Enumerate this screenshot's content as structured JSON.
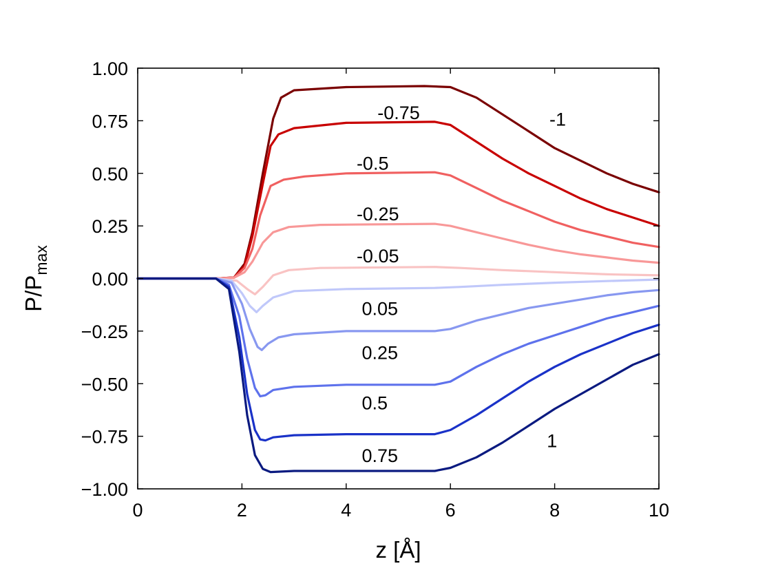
{
  "chart_data": {
    "type": "line",
    "title": "",
    "xlabel": "z [Å]",
    "ylabel": {
      "main": "P/P",
      "sub": "max"
    },
    "xlim": [
      0,
      10
    ],
    "ylim": [
      -1.0,
      1.0
    ],
    "xticks": [
      0,
      2,
      4,
      6,
      8,
      10
    ],
    "xtick_labels": [
      "0",
      "2",
      "4",
      "6",
      "8",
      "10"
    ],
    "yticks": [
      -1.0,
      -0.75,
      -0.5,
      -0.25,
      0.0,
      0.25,
      0.5,
      0.75,
      1.0
    ],
    "ytick_labels": [
      "−1.00",
      "−0.75",
      "−0.50",
      "−0.25",
      "0.00",
      "0.25",
      "0.50",
      "0.75",
      "1.00"
    ],
    "grid": false,
    "series": [
      {
        "label": "-1",
        "label_at": [
          7.9,
          0.76
        ],
        "color": "#7a0000",
        "points": [
          [
            0,
            0
          ],
          [
            1.5,
            0
          ],
          [
            1.85,
            0.005
          ],
          [
            2.05,
            0.07
          ],
          [
            2.2,
            0.22
          ],
          [
            2.4,
            0.5
          ],
          [
            2.6,
            0.76
          ],
          [
            2.75,
            0.86
          ],
          [
            3.0,
            0.895
          ],
          [
            4.0,
            0.91
          ],
          [
            5.5,
            0.915
          ],
          [
            6.0,
            0.91
          ],
          [
            6.5,
            0.86
          ],
          [
            7.0,
            0.78
          ],
          [
            7.5,
            0.7
          ],
          [
            8.0,
            0.62
          ],
          [
            8.5,
            0.56
          ],
          [
            9.0,
            0.5
          ],
          [
            9.5,
            0.45
          ],
          [
            10.0,
            0.41
          ]
        ]
      },
      {
        "label": "-0.75",
        "label_at": [
          4.6,
          0.79
        ],
        "color": "#c80000",
        "points": [
          [
            0,
            0
          ],
          [
            1.5,
            0
          ],
          [
            1.85,
            0.005
          ],
          [
            2.05,
            0.06
          ],
          [
            2.2,
            0.2
          ],
          [
            2.4,
            0.45
          ],
          [
            2.55,
            0.63
          ],
          [
            2.7,
            0.685
          ],
          [
            3.0,
            0.715
          ],
          [
            4.0,
            0.74
          ],
          [
            5.7,
            0.745
          ],
          [
            6.0,
            0.73
          ],
          [
            6.5,
            0.65
          ],
          [
            7.0,
            0.57
          ],
          [
            7.5,
            0.5
          ],
          [
            8.0,
            0.44
          ],
          [
            8.5,
            0.38
          ],
          [
            9.0,
            0.33
          ],
          [
            9.5,
            0.29
          ],
          [
            10.0,
            0.25
          ]
        ]
      },
      {
        "label": "-0.5",
        "label_at": [
          4.2,
          0.55
        ],
        "color": "#f06060",
        "points": [
          [
            0,
            0
          ],
          [
            1.5,
            0
          ],
          [
            1.85,
            0.004
          ],
          [
            2.05,
            0.05
          ],
          [
            2.2,
            0.14
          ],
          [
            2.35,
            0.3
          ],
          [
            2.55,
            0.44
          ],
          [
            2.8,
            0.47
          ],
          [
            3.2,
            0.485
          ],
          [
            4.0,
            0.5
          ],
          [
            5.7,
            0.505
          ],
          [
            6.0,
            0.49
          ],
          [
            6.5,
            0.43
          ],
          [
            7.0,
            0.37
          ],
          [
            7.5,
            0.32
          ],
          [
            8.0,
            0.27
          ],
          [
            8.5,
            0.23
          ],
          [
            9.0,
            0.2
          ],
          [
            9.5,
            0.17
          ],
          [
            10.0,
            0.15
          ]
        ]
      },
      {
        "label": "-0.25",
        "label_at": [
          4.2,
          0.31
        ],
        "color": "#f89898",
        "points": [
          [
            0,
            0
          ],
          [
            1.5,
            0
          ],
          [
            1.85,
            0.004
          ],
          [
            2.05,
            0.03
          ],
          [
            2.2,
            0.08
          ],
          [
            2.4,
            0.17
          ],
          [
            2.6,
            0.22
          ],
          [
            2.9,
            0.245
          ],
          [
            3.5,
            0.255
          ],
          [
            5.7,
            0.26
          ],
          [
            6.0,
            0.25
          ],
          [
            6.5,
            0.22
          ],
          [
            7.0,
            0.19
          ],
          [
            7.5,
            0.16
          ],
          [
            8.0,
            0.135
          ],
          [
            8.5,
            0.115
          ],
          [
            9.0,
            0.1
          ],
          [
            9.5,
            0.085
          ],
          [
            10.0,
            0.075
          ]
        ]
      },
      {
        "label": "-0.05",
        "label_at": [
          4.2,
          0.11
        ],
        "color": "#f9c3c3",
        "points": [
          [
            0,
            0
          ],
          [
            1.5,
            0
          ],
          [
            1.9,
            -0.01
          ],
          [
            2.1,
            -0.05
          ],
          [
            2.25,
            -0.075
          ],
          [
            2.4,
            -0.04
          ],
          [
            2.6,
            0.015
          ],
          [
            2.9,
            0.04
          ],
          [
            3.5,
            0.05
          ],
          [
            5.7,
            0.055
          ],
          [
            6.2,
            0.05
          ],
          [
            7.0,
            0.04
          ],
          [
            8.0,
            0.03
          ],
          [
            9.0,
            0.02
          ],
          [
            10.0,
            0.015
          ]
        ]
      },
      {
        "label": "0.05",
        "label_at": [
          4.3,
          -0.14
        ],
        "color": "#c0c8fa",
        "points": [
          [
            0,
            0
          ],
          [
            1.5,
            0
          ],
          [
            1.8,
            -0.01
          ],
          [
            2.0,
            -0.07
          ],
          [
            2.15,
            -0.13
          ],
          [
            2.28,
            -0.16
          ],
          [
            2.4,
            -0.13
          ],
          [
            2.6,
            -0.09
          ],
          [
            3.0,
            -0.06
          ],
          [
            4.0,
            -0.05
          ],
          [
            5.7,
            -0.045
          ],
          [
            6.2,
            -0.04
          ],
          [
            7.0,
            -0.03
          ],
          [
            8.0,
            -0.02
          ],
          [
            9.0,
            -0.012
          ],
          [
            10.0,
            -0.005
          ]
        ]
      },
      {
        "label": "0.25",
        "label_at": [
          4.3,
          -0.35
        ],
        "color": "#8898f0",
        "points": [
          [
            0,
            0
          ],
          [
            1.5,
            0
          ],
          [
            1.8,
            -0.02
          ],
          [
            2.0,
            -0.12
          ],
          [
            2.15,
            -0.24
          ],
          [
            2.3,
            -0.325
          ],
          [
            2.38,
            -0.34
          ],
          [
            2.5,
            -0.31
          ],
          [
            2.7,
            -0.28
          ],
          [
            3.0,
            -0.265
          ],
          [
            4.0,
            -0.25
          ],
          [
            5.7,
            -0.25
          ],
          [
            6.0,
            -0.24
          ],
          [
            6.5,
            -0.2
          ],
          [
            7.0,
            -0.17
          ],
          [
            7.5,
            -0.14
          ],
          [
            8.0,
            -0.12
          ],
          [
            8.5,
            -0.1
          ],
          [
            9.0,
            -0.08
          ],
          [
            9.5,
            -0.065
          ],
          [
            10.0,
            -0.055
          ]
        ]
      },
      {
        "label": "0.5",
        "label_at": [
          4.3,
          -0.59
        ],
        "color": "#5e72ec",
        "points": [
          [
            0,
            0
          ],
          [
            1.5,
            0
          ],
          [
            1.75,
            -0.03
          ],
          [
            1.95,
            -0.18
          ],
          [
            2.1,
            -0.38
          ],
          [
            2.25,
            -0.52
          ],
          [
            2.35,
            -0.56
          ],
          [
            2.45,
            -0.555
          ],
          [
            2.6,
            -0.53
          ],
          [
            3.0,
            -0.515
          ],
          [
            4.0,
            -0.505
          ],
          [
            5.7,
            -0.505
          ],
          [
            6.0,
            -0.49
          ],
          [
            6.5,
            -0.42
          ],
          [
            7.0,
            -0.36
          ],
          [
            7.5,
            -0.31
          ],
          [
            8.0,
            -0.27
          ],
          [
            8.5,
            -0.23
          ],
          [
            9.0,
            -0.19
          ],
          [
            9.5,
            -0.16
          ],
          [
            10.0,
            -0.13
          ]
        ]
      },
      {
        "label": "0.75",
        "label_at": [
          4.3,
          -0.84
        ],
        "color": "#1a32c8",
        "points": [
          [
            0,
            0
          ],
          [
            1.5,
            0
          ],
          [
            1.75,
            -0.04
          ],
          [
            1.95,
            -0.28
          ],
          [
            2.1,
            -0.55
          ],
          [
            2.25,
            -0.72
          ],
          [
            2.35,
            -0.765
          ],
          [
            2.45,
            -0.77
          ],
          [
            2.6,
            -0.755
          ],
          [
            3.0,
            -0.745
          ],
          [
            4.0,
            -0.74
          ],
          [
            5.7,
            -0.74
          ],
          [
            6.0,
            -0.72
          ],
          [
            6.5,
            -0.65
          ],
          [
            7.0,
            -0.57
          ],
          [
            7.5,
            -0.49
          ],
          [
            8.0,
            -0.42
          ],
          [
            8.5,
            -0.36
          ],
          [
            9.0,
            -0.31
          ],
          [
            9.5,
            -0.26
          ],
          [
            10.0,
            -0.22
          ]
        ]
      },
      {
        "label": "1",
        "label_at": [
          7.85,
          -0.77
        ],
        "color": "#0a1a80",
        "points": [
          [
            0,
            0
          ],
          [
            1.5,
            0
          ],
          [
            1.75,
            -0.05
          ],
          [
            1.95,
            -0.35
          ],
          [
            2.1,
            -0.65
          ],
          [
            2.25,
            -0.84
          ],
          [
            2.4,
            -0.905
          ],
          [
            2.55,
            -0.92
          ],
          [
            3.0,
            -0.915
          ],
          [
            4.0,
            -0.915
          ],
          [
            5.7,
            -0.915
          ],
          [
            6.0,
            -0.9
          ],
          [
            6.5,
            -0.85
          ],
          [
            7.0,
            -0.78
          ],
          [
            7.5,
            -0.7
          ],
          [
            8.0,
            -0.62
          ],
          [
            8.5,
            -0.55
          ],
          [
            9.0,
            -0.48
          ],
          [
            9.5,
            -0.41
          ],
          [
            10.0,
            -0.36
          ]
        ]
      }
    ]
  }
}
